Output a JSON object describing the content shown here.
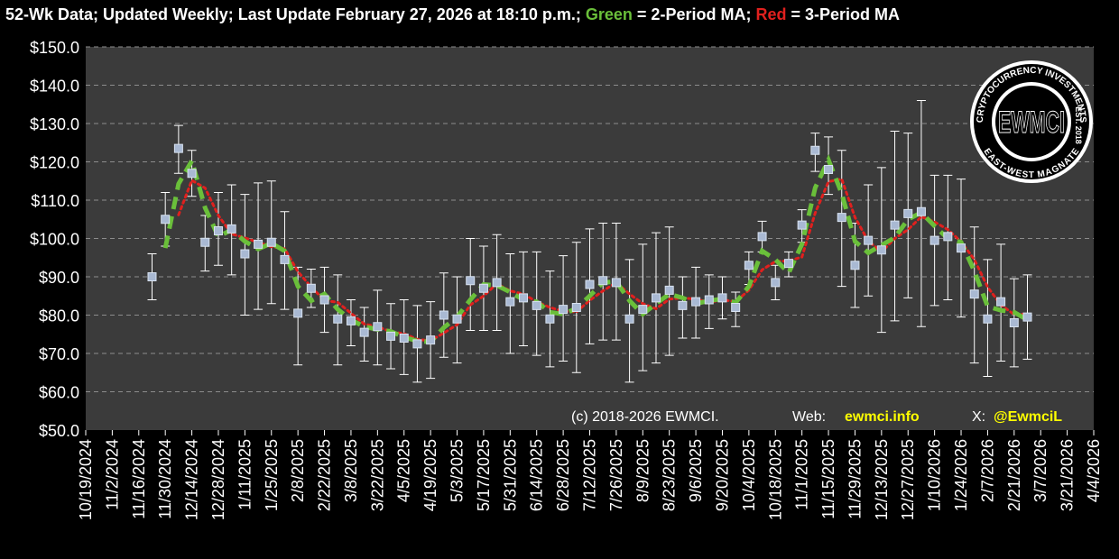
{
  "header": {
    "prefix": "52-Wk Data; Updated Weekly; Last Update February 27, 2026 at 18:10 p.m.; ",
    "green_word": "Green",
    "green_rest": " = 2-Period MA; ",
    "red_word": "Red",
    "red_rest": " = 3-Period MA"
  },
  "footer": {
    "copyright": "(c) 2018-2026 EWMCI.",
    "web_label": "Web:",
    "web_url": "ewmci.info",
    "x_label": "X:",
    "x_handle": "@EwmciL"
  },
  "logo": {
    "center_text": "EWMCI",
    "ring_top": "CRYPTOCURRENCY INVESTMENTS",
    "ring_right": "EST. 2018",
    "ring_bottom": "EAST-WEST MAGNATE"
  },
  "colors": {
    "background": "#000000",
    "plot_area": "#3b3b3b",
    "gridline": "#8c8c8c",
    "ma2": "#6abf3a",
    "ma3": "#e0201e",
    "marker": "#a9b9d3",
    "errorbar": "#ffffff",
    "highlight": "#ffff00"
  },
  "chart_data": {
    "type": "line",
    "ylim": [
      50,
      150
    ],
    "yticks": [
      "$50.0",
      "$60.0",
      "$70.0",
      "$80.0",
      "$90.0",
      "$100.0",
      "$110.0",
      "$120.0",
      "$130.0",
      "$140.0",
      "$150.0"
    ],
    "xlim": [
      "10/19/2024",
      "4/4/2026"
    ],
    "xticks": [
      "10/19/2024",
      "11/2/2024",
      "11/16/2024",
      "11/30/2024",
      "12/14/2024",
      "12/28/2024",
      "1/11/2025",
      "1/25/2025",
      "2/8/2025",
      "2/22/2025",
      "3/8/2025",
      "3/22/2025",
      "4/5/2025",
      "4/19/2025",
      "5/3/2025",
      "5/17/2025",
      "5/31/2025",
      "6/14/2025",
      "6/28/2025",
      "7/12/2025",
      "7/26/2025",
      "8/9/2025",
      "8/23/2025",
      "9/6/2025",
      "9/20/2025",
      "10/4/2025",
      "10/18/2025",
      "11/1/2025",
      "11/15/2025",
      "11/29/2025",
      "12/13/2025",
      "12/27/2025",
      "1/10/2026",
      "1/24/2026",
      "2/7/2026",
      "2/21/2026",
      "3/7/2026",
      "3/21/2026",
      "4/4/2026"
    ],
    "points": [
      {
        "x": "11/23/2024",
        "y": 90.0,
        "low": 84.0,
        "high": 96.0
      },
      {
        "x": "11/30/2024",
        "y": 105.0,
        "low": 98.0,
        "high": 112.0
      },
      {
        "x": "12/7/2024",
        "y": 123.5,
        "low": 117.0,
        "high": 129.5
      },
      {
        "x": "12/14/2024",
        "y": 117.0,
        "low": 111.0,
        "high": 123.0
      },
      {
        "x": "12/21/2024",
        "y": 99.0,
        "low": 91.5,
        "high": 106.0
      },
      {
        "x": "12/28/2024",
        "y": 102.0,
        "low": 93.0,
        "high": 112.0
      },
      {
        "x": "1/4/2025",
        "y": 102.5,
        "low": 90.5,
        "high": 114.0
      },
      {
        "x": "1/11/2025",
        "y": 96.0,
        "low": 80.0,
        "high": 111.5
      },
      {
        "x": "1/18/2025",
        "y": 98.5,
        "low": 81.5,
        "high": 114.5
      },
      {
        "x": "1/25/2025",
        "y": 99.0,
        "low": 83.0,
        "high": 115.0
      },
      {
        "x": "2/1/2025",
        "y": 94.5,
        "low": 81.5,
        "high": 107.0
      },
      {
        "x": "2/8/2025",
        "y": 80.5,
        "low": 67.0,
        "high": 92.5
      },
      {
        "x": "2/15/2025",
        "y": 87.0,
        "low": 82.0,
        "high": 92.0
      },
      {
        "x": "2/22/2025",
        "y": 84.0,
        "low": 75.5,
        "high": 92.5
      },
      {
        "x": "3/1/2025",
        "y": 79.0,
        "low": 67.0,
        "high": 90.5
      },
      {
        "x": "3/8/2025",
        "y": 78.5,
        "low": 72.0,
        "high": 84.0
      },
      {
        "x": "3/15/2025",
        "y": 75.5,
        "low": 68.0,
        "high": 82.0
      },
      {
        "x": "3/22/2025",
        "y": 77.0,
        "low": 67.0,
        "high": 86.5
      },
      {
        "x": "3/29/2025",
        "y": 74.5,
        "low": 66.0,
        "high": 83.0
      },
      {
        "x": "4/5/2025",
        "y": 74.0,
        "low": 64.5,
        "high": 84.0
      },
      {
        "x": "4/12/2025",
        "y": 72.5,
        "low": 62.5,
        "high": 82.5
      },
      {
        "x": "4/19/2025",
        "y": 73.5,
        "low": 63.5,
        "high": 83.5
      },
      {
        "x": "4/26/2025",
        "y": 80.0,
        "low": 69.0,
        "high": 91.0
      },
      {
        "x": "5/3/2025",
        "y": 79.0,
        "low": 67.5,
        "high": 90.0
      },
      {
        "x": "5/10/2025",
        "y": 89.0,
        "low": 76.0,
        "high": 100.0
      },
      {
        "x": "5/17/2025",
        "y": 87.0,
        "low": 76.0,
        "high": 98.0
      },
      {
        "x": "5/24/2025",
        "y": 88.5,
        "low": 76.0,
        "high": 101.0
      },
      {
        "x": "5/31/2025",
        "y": 83.5,
        "low": 70.0,
        "high": 96.0
      },
      {
        "x": "6/7/2025",
        "y": 84.5,
        "low": 72.0,
        "high": 96.5
      },
      {
        "x": "6/14/2025",
        "y": 82.5,
        "low": 69.5,
        "high": 96.5
      },
      {
        "x": "6/21/2025",
        "y": 79.0,
        "low": 66.5,
        "high": 91.5
      },
      {
        "x": "6/28/2025",
        "y": 81.5,
        "low": 68.0,
        "high": 95.5
      },
      {
        "x": "7/5/2025",
        "y": 82.0,
        "low": 65.0,
        "high": 99.0
      },
      {
        "x": "7/12/2025",
        "y": 88.0,
        "low": 72.5,
        "high": 102.5
      },
      {
        "x": "7/19/2025",
        "y": 89.0,
        "low": 73.5,
        "high": 104.0
      },
      {
        "x": "7/26/2025",
        "y": 88.5,
        "low": 73.5,
        "high": 104.0
      },
      {
        "x": "8/2/2025",
        "y": 79.0,
        "low": 62.5,
        "high": 94.5
      },
      {
        "x": "8/9/2025",
        "y": 81.5,
        "low": 65.5,
        "high": 98.5
      },
      {
        "x": "8/16/2025",
        "y": 84.5,
        "low": 67.5,
        "high": 101.5
      },
      {
        "x": "8/23/2025",
        "y": 86.5,
        "low": 69.5,
        "high": 103.0
      },
      {
        "x": "8/30/2025",
        "y": 82.5,
        "low": 74.0,
        "high": 90.0
      },
      {
        "x": "9/6/2025",
        "y": 83.5,
        "low": 74.0,
        "high": 92.5
      },
      {
        "x": "9/13/2025",
        "y": 84.0,
        "low": 76.5,
        "high": 90.5
      },
      {
        "x": "9/20/2025",
        "y": 84.5,
        "low": 79.0,
        "high": 90.0
      },
      {
        "x": "9/27/2025",
        "y": 82.0,
        "low": 77.0,
        "high": 86.0
      },
      {
        "x": "10/4/2025",
        "y": 93.0,
        "low": 88.0,
        "high": 96.5
      },
      {
        "x": "10/11/2025",
        "y": 100.5,
        "low": 96.5,
        "high": 104.5
      },
      {
        "x": "10/18/2025",
        "y": 88.5,
        "low": 84.0,
        "high": 93.0
      },
      {
        "x": "10/25/2025",
        "y": 93.5,
        "low": 90.0,
        "high": 96.5
      },
      {
        "x": "11/1/2025",
        "y": 103.5,
        "low": 99.0,
        "high": 107.5
      },
      {
        "x": "11/8/2025",
        "y": 123.0,
        "low": 117.5,
        "high": 127.5
      },
      {
        "x": "11/15/2025",
        "y": 118.0,
        "low": 111.5,
        "high": 126.5
      },
      {
        "x": "11/22/2025",
        "y": 105.5,
        "low": 87.5,
        "high": 123.0
      },
      {
        "x": "11/29/2025",
        "y": 93.0,
        "low": 82.0,
        "high": 104.0
      },
      {
        "x": "12/6/2025",
        "y": 99.5,
        "low": 85.0,
        "high": 114.0
      },
      {
        "x": "12/13/2025",
        "y": 97.0,
        "low": 75.5,
        "high": 118.5
      },
      {
        "x": "12/20/2025",
        "y": 103.5,
        "low": 78.5,
        "high": 128.0
      },
      {
        "x": "12/27/2025",
        "y": 106.5,
        "low": 84.5,
        "high": 127.5
      },
      {
        "x": "1/3/2026",
        "y": 107.0,
        "low": 77.0,
        "high": 136.0
      },
      {
        "x": "1/10/2026",
        "y": 99.5,
        "low": 82.5,
        "high": 116.5
      },
      {
        "x": "1/17/2026",
        "y": 100.5,
        "low": 84.0,
        "high": 116.5
      },
      {
        "x": "1/24/2026",
        "y": 97.5,
        "low": 79.5,
        "high": 115.5
      },
      {
        "x": "1/31/2026",
        "y": 85.5,
        "low": 67.5,
        "high": 103.0
      },
      {
        "x": "2/7/2026",
        "y": 79.0,
        "low": 64.0,
        "high": 94.5
      },
      {
        "x": "2/14/2026",
        "y": 83.5,
        "low": 68.0,
        "high": 98.5
      },
      {
        "x": "2/21/2026",
        "y": 78.0,
        "low": 66.5,
        "high": 89.5
      },
      {
        "x": "2/28/2026",
        "y": 79.5,
        "low": 68.5,
        "high": 90.5
      }
    ],
    "series": [
      {
        "name": "2-Period MA",
        "color": "#6abf3a",
        "style": "dashed"
      },
      {
        "name": "3-Period MA",
        "color": "#e0201e",
        "style": "dotted"
      }
    ],
    "grid": true
  }
}
